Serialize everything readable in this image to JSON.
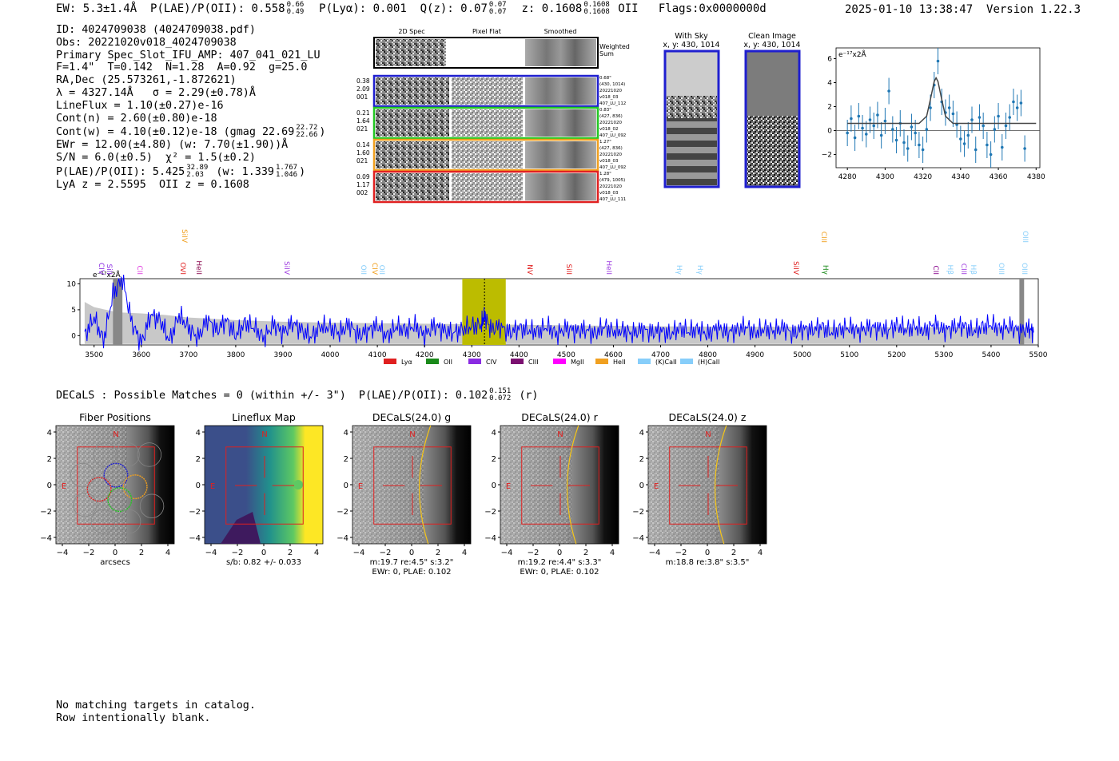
{
  "header": {
    "ew_label": "EW: 5.3±1.4Å",
    "plae_label": "P(LAE)/P(OII):",
    "plae_value": "0.558",
    "plae_hi": "0.66",
    "plae_lo": "0.49",
    "plya_label": "P(Lyα): 0.001",
    "qz_label": "Q(z): 0.07",
    "qz_hi": "0.07",
    "qz_lo": "0.07",
    "z_label": "z: 0.1608",
    "z_hi": "0.1608",
    "z_lo": "0.1608",
    "z_line": "OII",
    "flags": "Flags:0x0000000d",
    "timestamp": "2025-01-10 13:38:47",
    "version": "Version 1.22.3"
  },
  "info": {
    "id": "ID: 4024709038 (4024709038.pdf)",
    "obs": "Obs: 20221020v018_4024709038",
    "spec": "Primary Spec_Slot_IFU_AMP: 407_041_021_LU",
    "fit": "F=1.4\"  T=0.142  N=1.28  A=0.92  g=25.0",
    "radec": "RA,Dec (25.573261,-1.872621)",
    "lambda": "λ = 4327.14Å   σ = 2.29(±0.78)Å",
    "lineflux": "LineFlux = 1.10(±0.27)e-16",
    "contn": "Cont(n) = 2.60(±0.80)e-18",
    "contw": "Cont(w) = 4.10(±0.12)e-18 (gmag 22.69",
    "contw_hi": "22.72",
    "contw_lo": "22.66",
    "ewr": "EWr = 12.00(±4.80) (w: 7.70(±1.90))Å",
    "sn": "S/N = 6.0(±0.5)  χ² = 1.5(±0.2)",
    "plae": "P(LAE)/P(OII): 5.425",
    "plae_hi": "32.89",
    "plae_lo": "2.03",
    "plae_w": "(w: 1.339",
    "plae_w_hi": "1.767",
    "plae_w_lo": "1.046",
    "lyaz": "LyA z = 2.5595  OII z = 0.1608"
  },
  "cutouts": {
    "col_2d": "2D Spec",
    "col_flat": "Pixel Flat",
    "col_smooth": "Smoothed",
    "weighted": [
      "Weighted",
      "Sum"
    ],
    "rows": [
      {
        "left": [
          "0.38",
          "2.09",
          "001"
        ],
        "right": [
          "0.68\"",
          "(430, 1014)",
          "20221020",
          "v018_03",
          "407_LU_112"
        ],
        "color": "#1f1fcf"
      },
      {
        "left": [
          "0.21",
          "1.64",
          "021"
        ],
        "right": [
          "0.83\"",
          "(427, 836)",
          "20221020",
          "v018_02",
          "407_LU_092"
        ],
        "color": "#22c722"
      },
      {
        "left": [
          "0.14",
          "1.60",
          "021"
        ],
        "right": [
          "1.27\"",
          "(427, 836)",
          "20221020",
          "v018_03",
          "407_LU_092"
        ],
        "color": "#f0a020"
      },
      {
        "left": [
          "0.09",
          "1.17",
          "002"
        ],
        "right": [
          "1.28\"",
          "(479, 1005)",
          "20221020",
          "v018_03",
          "407_LU_111"
        ],
        "color": "#e02020"
      }
    ],
    "sky_title": "With Sky",
    "sky_xy": "x, y: 430, 1014",
    "clean_title": "Clean Image",
    "clean_xy": "x, y: 430, 1014"
  },
  "zoom_plot": {
    "ylabel_text": "e⁻¹⁷x2Å",
    "xticks": [
      "4280",
      "4300",
      "4320",
      "4340",
      "4360",
      "4380"
    ],
    "yticks": [
      "6",
      "4",
      "2",
      "0",
      "-2"
    ]
  },
  "spectrum": {
    "ylabel_text": "e⁻¹⁷x2Å",
    "xticks": [
      "3500",
      "3600",
      "3700",
      "3800",
      "3900",
      "4000",
      "4100",
      "4200",
      "4300",
      "4400",
      "4500",
      "4600",
      "4700",
      "4800",
      "4900",
      "5000",
      "5100",
      "5200",
      "5300",
      "5400",
      "5500"
    ],
    "yticks": [
      "10",
      "5",
      "0"
    ],
    "lines": [
      {
        "name": "CIV",
        "color": "#8a2be2",
        "row": 0
      },
      {
        "name": "SiII",
        "color": "#8a2be2",
        "row": 0
      },
      {
        "name": "CII",
        "color": "#e040e0",
        "row": 0
      },
      {
        "name": "SiIV",
        "color": "#f0a020",
        "row": 1
      },
      {
        "name": "OVI",
        "color": "#e02020",
        "row": 0
      },
      {
        "name": "HeII",
        "color": "#8b0a50",
        "row": 0
      },
      {
        "name": "SiIV",
        "color": "#a040e0",
        "row": 0
      },
      {
        "name": "OII",
        "color": "#87cefa",
        "row": 0
      },
      {
        "name": "CIV",
        "color": "#f0a020",
        "row": 0
      },
      {
        "name": "OII",
        "color": "#87cefa",
        "row": 0
      },
      {
        "name": "NV",
        "color": "#e02020",
        "row": 0
      },
      {
        "name": "SiII",
        "color": "#e02020",
        "row": 0
      },
      {
        "name": "HeII",
        "color": "#a040e0",
        "row": 0
      },
      {
        "name": "Hγ",
        "color": "#87cefa",
        "row": 0
      },
      {
        "name": "Hγ",
        "color": "#87cefa",
        "row": 0
      },
      {
        "name": "SiIV",
        "color": "#e02020",
        "row": 0
      },
      {
        "name": "CIII",
        "color": "#f0a020",
        "row": 1
      },
      {
        "name": "Hγ",
        "color": "#1a8a1a",
        "row": 0
      },
      {
        "name": "CII",
        "color": "#8b0a90",
        "row": 0
      },
      {
        "name": "Hβ",
        "color": "#87cefa",
        "row": 0
      },
      {
        "name": "CIII",
        "color": "#a040e0",
        "row": 0
      },
      {
        "name": "Hβ",
        "color": "#87cefa",
        "row": 0
      },
      {
        "name": "OIII",
        "color": "#87cefa",
        "row": 0
      },
      {
        "name": "OIII",
        "color": "#87cefa",
        "row": 0
      },
      {
        "name": "OIII",
        "color": "#87cefa",
        "row": 1
      }
    ],
    "legend": [
      {
        "name": "Lyα",
        "color": "#e02020"
      },
      {
        "name": "OII",
        "color": "#1a8a1a"
      },
      {
        "name": "CIV",
        "color": "#8a2be2"
      },
      {
        "name": "CIII",
        "color": "#7b1070"
      },
      {
        "name": "MgII",
        "color": "#ff00ff"
      },
      {
        "name": "HeII",
        "color": "#f0a020"
      },
      {
        "name": "(K)CaII",
        "color": "#87cefa"
      },
      {
        "name": "(H)CaII",
        "color": "#87cefa"
      }
    ]
  },
  "decals": {
    "line": "DECaLS : Possible Matches = 0 (within +/- 3\")  P(LAE)/P(OII): 0.102",
    "hi": "0.151",
    "lo": "0.072",
    "band": "(r)"
  },
  "panels": [
    {
      "title": "Fiber Positions",
      "xlabel": "arcsecs",
      "xlabel2": ""
    },
    {
      "title": "Lineflux Map",
      "xlabel": "s/b: 0.82 +/- 0.033",
      "xlabel2": ""
    },
    {
      "title": "DECaLS(24.0) g",
      "xlabel": "m:19.7  re:4.5\"  s:3.2\"",
      "xlabel2": "EWr: 0, PLAE: 0.102"
    },
    {
      "title": "DECaLS(24.0) r",
      "xlabel": "m:19.2  re:4.4\"  s:3.3\"",
      "xlabel2": "EWr: 0, PLAE: 0.102"
    },
    {
      "title": "DECaLS(24.0) z",
      "xlabel": "m:18.8  re:3.8\"  s:3.5\"",
      "xlabel2": ""
    }
  ],
  "panel_axis": {
    "xticks": [
      "−4",
      "−2",
      "0",
      "2",
      "4"
    ],
    "yticks": [
      "4",
      "2",
      "0",
      "−2",
      "−4"
    ],
    "north": "N",
    "east": "E"
  },
  "catalog": {
    "line1": "No matching targets in catalog.",
    "line2": "Row intentionally blank."
  },
  "chart_data": [
    {
      "type": "scatter",
      "title": "",
      "xlabel": "",
      "ylabel": "e⁻¹⁷x2Å",
      "xlim": [
        4274,
        4382
      ],
      "ylim": [
        -3.1,
        6.9
      ],
      "x": [
        4280,
        4282,
        4284,
        4286,
        4288,
        4290,
        4292,
        4294,
        4296,
        4298,
        4300,
        4302,
        4304,
        4306,
        4308,
        4310,
        4312,
        4314,
        4316,
        4318,
        4320,
        4322,
        4324,
        4326,
        4328,
        4330,
        4332,
        4334,
        4336,
        4338,
        4340,
        4342,
        4344,
        4346,
        4348,
        4350,
        4352,
        4354,
        4356,
        4358,
        4360,
        4362,
        4364,
        4366,
        4368,
        4370,
        4372,
        4374
      ],
      "y": [
        -0.2,
        1.0,
        -0.6,
        1.2,
        0.2,
        -0.3,
        0.9,
        0.4,
        1.3,
        -0.4,
        0.8,
        3.3,
        0.1,
        -0.8,
        0.6,
        -1.0,
        -1.5,
        0.3,
        -0.2,
        -1.2,
        -1.6,
        0.1,
        1.9,
        3.8,
        5.8,
        2.4,
        1.5,
        1.9,
        1.4,
        0.5,
        -0.7,
        -1.1,
        -0.4,
        0.9,
        -1.6,
        1.1,
        0.4,
        -1.2,
        -2.0,
        0.1,
        1.2,
        -1.4,
        0.4,
        1.1,
        2.4,
        1.9,
        2.3,
        -1.5
      ],
      "series": [
        {
          "name": "",
          "type": "model",
          "x": [
            4280,
            4300,
            4318,
            4322,
            4324,
            4326,
            4327,
            4328,
            4330,
            4332,
            4336,
            4380
          ],
          "y": [
            0.6,
            0.6,
            0.6,
            1.2,
            2.6,
            4.1,
            4.4,
            4.1,
            2.6,
            1.2,
            0.6,
            0.6
          ]
        }
      ]
    },
    {
      "type": "line",
      "title": "",
      "xlabel": "",
      "ylabel": "e⁻¹⁷x2Å",
      "xlim": [
        3470,
        5500
      ],
      "ylim": [
        -1.8,
        11
      ],
      "series": [
        {
          "name": "",
          "color": "#0000ff",
          "x": [
            3480,
            3500,
            3520,
            3540,
            3560,
            3580,
            3600,
            3620,
            3640,
            3660,
            3680,
            3700,
            3720,
            3740,
            3760,
            3780,
            3800,
            3820,
            3840,
            3860,
            3880,
            3900,
            3920,
            3940,
            3960,
            3980,
            4000,
            4020,
            4040,
            4060,
            4080,
            4100,
            4120,
            4140,
            4160,
            4180,
            4200,
            4220,
            4240,
            4260,
            4280,
            4300,
            4320,
            4327,
            4340,
            4360,
            4380,
            4400,
            4420,
            4440,
            4460,
            4480,
            4500,
            4520,
            4540,
            4560,
            4580,
            4600,
            4620,
            4640,
            4660,
            4680,
            4700,
            4720,
            4740,
            4760,
            4780,
            4800,
            4820,
            4840,
            4860,
            4880,
            4900,
            4920,
            4940,
            4960,
            4980,
            5000,
            5020,
            5040,
            5060,
            5080,
            5100,
            5120,
            5140,
            5160,
            5180,
            5200,
            5220,
            5240,
            5260,
            5280,
            5300,
            5320,
            5340,
            5360,
            5380,
            5400,
            5420,
            5440,
            5460,
            5480,
            5490
          ],
          "y": [
            0.0,
            3.5,
            -1.0,
            8.0,
            11.0,
            2.5,
            -1.5,
            4.0,
            3.0,
            -1.0,
            4.0,
            1.5,
            -0.5,
            3.2,
            1.0,
            3.0,
            0.0,
            2.5,
            1.5,
            -0.5,
            2.2,
            0.5,
            2.5,
            1.0,
            -0.3,
            1.8,
            1.5,
            0.5,
            2.2,
            0.0,
            1.0,
            2.0,
            -0.2,
            1.8,
            1.0,
            2.0,
            0.0,
            2.0,
            1.0,
            0.5,
            1.2,
            1.8,
            2.0,
            4.0,
            1.2,
            1.8,
            0.5,
            1.5,
            1.0,
            0.8,
            1.8,
            0.2,
            1.5,
            0.8,
            1.2,
            0.3,
            1.8,
            0.8,
            1.0,
            0.4,
            1.2,
            0.6,
            1.0,
            0.2,
            1.5,
            0.8,
            1.2,
            0.2,
            1.6,
            0.6,
            1.0,
            1.8,
            0.5,
            1.4,
            0.9,
            1.6,
            0.3,
            1.4,
            1.0,
            1.8,
            0.6,
            1.2,
            1.6,
            0.8,
            1.6,
            1.4,
            1.0,
            2.0,
            1.2,
            1.8,
            0.8,
            2.2,
            1.0,
            1.6,
            2.0,
            0.8,
            1.6,
            2.2,
            1.2,
            1.8,
            0.8,
            1.4,
            0.6
          ]
        },
        {
          "name": "",
          "color": "#bbbbbb",
          "type": "area",
          "x": [
            3480,
            3500,
            3550,
            3600,
            3650,
            3700,
            3800,
            3900,
            4000,
            4100,
            4200,
            4300,
            4400,
            4500,
            4600,
            4700,
            4800,
            4900,
            5000,
            5100,
            5200,
            5300,
            5400,
            5490
          ],
          "y": [
            6.5,
            5.5,
            4.5,
            4.3,
            4.0,
            3.5,
            3.0,
            2.7,
            2.5,
            2.4,
            2.3,
            2.2,
            2.1,
            2.0,
            1.9,
            1.8,
            1.75,
            1.7,
            1.7,
            1.65,
            1.6,
            1.6,
            1.6,
            1.6
          ]
        }
      ],
      "highlight_region": [
        4280,
        4372
      ],
      "marker_x": 4327
    }
  ]
}
